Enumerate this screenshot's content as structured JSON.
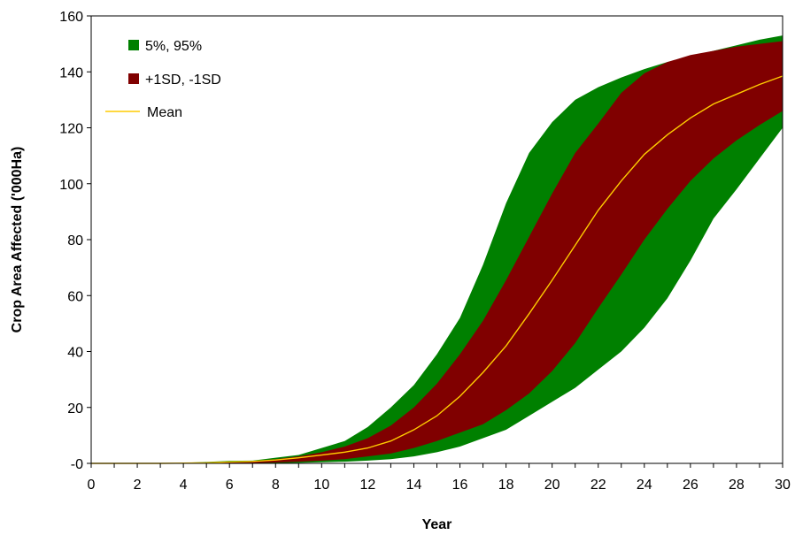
{
  "chart_data": {
    "type": "area",
    "xlabel": "Year",
    "ylabel": "Crop Area Affected ('000Ha)",
    "xlim": [
      0,
      30
    ],
    "ylim": [
      0,
      160
    ],
    "x_ticks": [
      0,
      2,
      4,
      6,
      8,
      10,
      12,
      14,
      16,
      18,
      20,
      22,
      24,
      26,
      28,
      30
    ],
    "y_ticks": [
      0,
      20,
      40,
      60,
      80,
      100,
      120,
      140,
      160
    ],
    "y_tick_labels": [
      "-0",
      "20",
      "40",
      "60",
      "80",
      "100",
      "120",
      "140",
      "160"
    ],
    "grid": false,
    "legend_position": "top-left",
    "x": [
      0,
      1,
      2,
      3,
      4,
      5,
      6,
      7,
      8,
      9,
      10,
      11,
      12,
      13,
      14,
      15,
      16,
      17,
      18,
      19,
      20,
      21,
      22,
      23,
      24,
      25,
      26,
      27,
      28,
      29,
      30
    ],
    "series": [
      {
        "name": "5%, 95%",
        "kind": "band",
        "color": "#008000",
        "lower": [
          0,
          0,
          0,
          0,
          0,
          0,
          0,
          0,
          0.1,
          0.2,
          0.4,
          0.6,
          1,
          1.5,
          2.5,
          4,
          6,
          9,
          12,
          17,
          22,
          27,
          33.5,
          40,
          48.5,
          59,
          72.5,
          87.5,
          98,
          109,
          120
        ],
        "upper": [
          0,
          0,
          0,
          0,
          0.2,
          0.5,
          0.9,
          1,
          2,
          3,
          5.5,
          8,
          13,
          20,
          28,
          39,
          52,
          71,
          93,
          111,
          122,
          130,
          134.5,
          138,
          141,
          143.5,
          145.5,
          147.5,
          149.5,
          151.5,
          153
        ]
      },
      {
        "name": "+1SD, -1SD",
        "kind": "band",
        "color": "#800000",
        "lower": [
          0,
          0,
          0,
          0,
          0,
          0,
          0,
          0.1,
          0.3,
          0.6,
          1,
          1.5,
          2.5,
          3.5,
          5.5,
          8,
          11,
          14,
          19,
          25,
          33,
          43,
          55.5,
          67.5,
          80,
          91,
          101,
          109,
          115.5,
          121,
          126
        ],
        "upper": [
          0,
          0,
          0,
          0,
          0.1,
          0.3,
          0.6,
          0.8,
          1.5,
          2.5,
          4,
          6,
          9,
          13.5,
          20,
          28.5,
          39,
          51,
          65.5,
          81,
          96.5,
          111,
          121.5,
          132.5,
          139.5,
          143.5,
          146,
          147.5,
          149,
          150,
          151
        ]
      },
      {
        "name": "Mean",
        "kind": "line",
        "color": "#FFCC00",
        "values": [
          0,
          0,
          0,
          0,
          0.1,
          0.2,
          0.5,
          0.7,
          1.2,
          2,
          3,
          4,
          5.5,
          8,
          12,
          17,
          24,
          32.5,
          42,
          53.5,
          65.5,
          78,
          90.5,
          101,
          110.5,
          117.5,
          123.5,
          128.5,
          132,
          135.5,
          138.5
        ]
      }
    ]
  }
}
